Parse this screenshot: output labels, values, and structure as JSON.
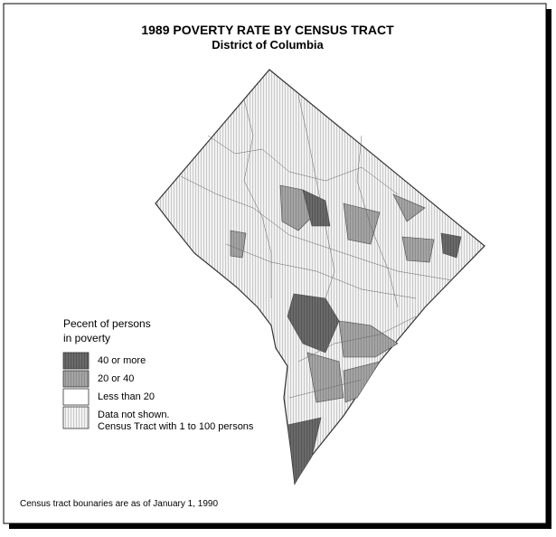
{
  "header": {
    "title": "1989 POVERTY RATE BY CENSUS TRACT",
    "subtitle": "District of Columbia"
  },
  "legend": {
    "title_lines": [
      "Pecent of persons",
      "in poverty"
    ],
    "items": [
      {
        "lines": [
          "40 or more"
        ]
      },
      {
        "lines": [
          "20 or 40"
        ]
      },
      {
        "lines": [
          "Less than 20"
        ]
      },
      {
        "lines": [
          "Data not shown.",
          "Census Tract with 1 to 100 persons"
        ]
      }
    ]
  },
  "footnote": "Census tract bounaries are as of January 1, 1990"
}
